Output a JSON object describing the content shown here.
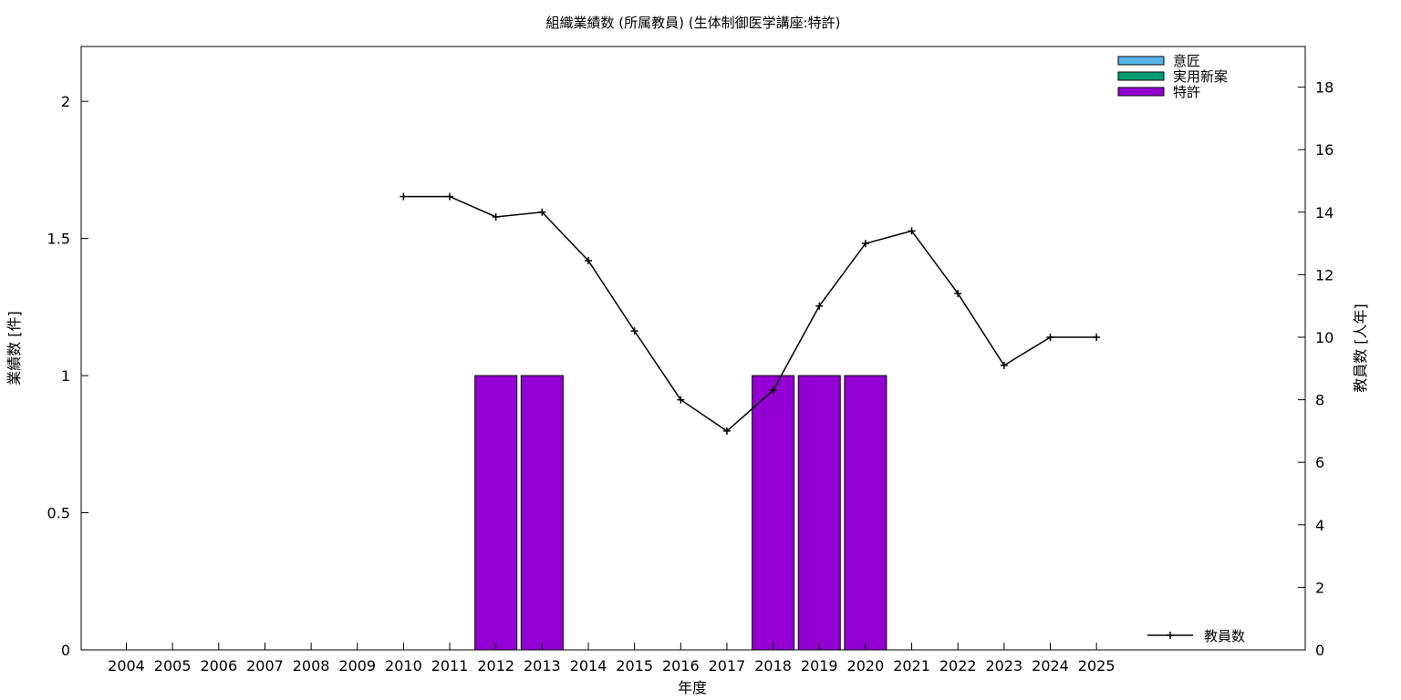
{
  "chart_data": {
    "type": "bar",
    "title": "組織業績数 (所属教員) (生体制御医学講座:特許)",
    "xlabel": "年度",
    "ylabel": "業績数 [件]",
    "y2label": "教員数 [人年]",
    "categories": [
      "2004",
      "2005",
      "2006",
      "2007",
      "2008",
      "2009",
      "2010",
      "2011",
      "2012",
      "2013",
      "2014",
      "2015",
      "2016",
      "2017",
      "2018",
      "2019",
      "2020",
      "2021",
      "2022",
      "2023",
      "2024",
      "2025"
    ],
    "ylim": [
      0,
      2.2
    ],
    "y_ticks": [
      "0",
      "0.5",
      "1",
      "1.5",
      "2"
    ],
    "y2lim": [
      0,
      19.3
    ],
    "y2_ticks": [
      "0",
      "2",
      "4",
      "6",
      "8",
      "10",
      "12",
      "14",
      "16",
      "18"
    ],
    "series": [
      {
        "name": "意匠",
        "color": "#56b4e9",
        "values": [
          0,
          0,
          0,
          0,
          0,
          0,
          0,
          0,
          0,
          0,
          0,
          0,
          0,
          0,
          0,
          0,
          0,
          0,
          0,
          0,
          0,
          0
        ]
      },
      {
        "name": "実用新案",
        "color": "#009e73",
        "values": [
          0,
          0,
          0,
          0,
          0,
          0,
          0,
          0,
          0,
          0,
          0,
          0,
          0,
          0,
          0,
          0,
          0,
          0,
          0,
          0,
          0,
          0
        ]
      },
      {
        "name": "特許",
        "color": "#9400d3",
        "values": [
          0,
          0,
          0,
          0,
          0,
          0,
          0,
          0,
          1,
          1,
          0,
          0,
          0,
          0,
          1,
          1,
          1,
          0,
          0,
          0,
          0,
          0
        ]
      }
    ],
    "line_series": {
      "name": "教員数",
      "axis": "y2",
      "color": "#000000",
      "x": [
        "2010",
        "2011",
        "2012",
        "2013",
        "2014",
        "2015",
        "2016",
        "2017",
        "2018",
        "2019",
        "2020",
        "2021",
        "2022",
        "2023",
        "2024",
        "2025"
      ],
      "values": [
        14.5,
        14.5,
        13.85,
        14.0,
        12.45,
        10.2,
        8.0,
        7.0,
        8.3,
        11.0,
        13.0,
        13.4,
        11.4,
        9.1,
        10.0,
        10.0
      ]
    },
    "legend_position": "top-right",
    "line_legend_position": "bottom-right",
    "grid": false
  }
}
